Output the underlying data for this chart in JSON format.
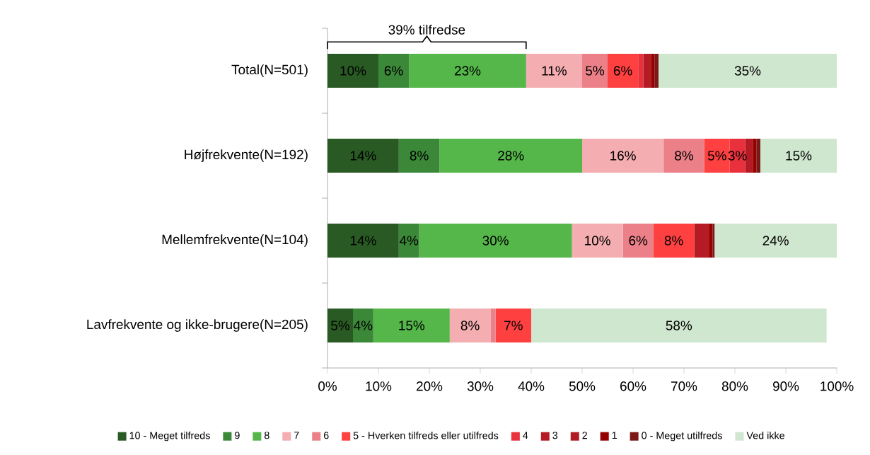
{
  "chart_data": {
    "type": "bar",
    "orientation": "horizontal",
    "stacked": true,
    "categories": [
      "Total(N=501)",
      "Højfrekvente(N=192)",
      "Mellemfrekvente(N=104)",
      "Lavfrekvente og ikke-brugere(N=205)"
    ],
    "series": [
      {
        "name": "10 - Meget tilfreds",
        "color": "#2a5a24",
        "values": [
          10,
          14,
          14,
          5
        ],
        "value_labels": [
          "10%",
          "14%",
          "14%",
          "5%"
        ]
      },
      {
        "name": "9",
        "color": "#3a8838",
        "values": [
          6,
          8,
          4,
          4
        ],
        "value_labels": [
          "6%",
          "8%",
          "4%",
          "4%"
        ]
      },
      {
        "name": "8",
        "color": "#55b64a",
        "values": [
          23,
          28,
          30,
          15
        ],
        "value_labels": [
          "23%",
          "28%",
          "30%",
          "15%"
        ]
      },
      {
        "name": "7",
        "color": "#f4adb0",
        "values": [
          11,
          16,
          10,
          8
        ],
        "value_labels": [
          "11%",
          "16%",
          "10%",
          "8%"
        ]
      },
      {
        "name": "6",
        "color": "#ec8088",
        "values": [
          5,
          8,
          6,
          1
        ],
        "value_labels": [
          "5%",
          "8%",
          "6%",
          null
        ]
      },
      {
        "name": "5 - Hverken tilfreds eller utilfreds",
        "color": "#ff4040",
        "values": [
          6,
          5,
          8,
          7
        ],
        "value_labels": [
          "6%",
          "5%",
          "8%",
          "7%"
        ]
      },
      {
        "name": "4",
        "color": "#e8313c",
        "values": [
          1,
          3,
          0,
          0
        ],
        "value_labels": [
          null,
          "3%",
          null,
          null
        ]
      },
      {
        "name": "3",
        "color": "#b51b25",
        "values": [
          1.5,
          1.5,
          3,
          0
        ],
        "value_labels": [
          null,
          null,
          null,
          null
        ]
      },
      {
        "name": "2",
        "color": "#b01c24",
        "values": [
          0,
          0,
          0,
          0
        ],
        "value_labels": [
          null,
          null,
          null,
          null
        ]
      },
      {
        "name": "1",
        "color": "#950000",
        "values": [
          0.7,
          0.7,
          0.6,
          0
        ],
        "value_labels": [
          null,
          null,
          null,
          null
        ]
      },
      {
        "name": "0 - Meget utilfreds",
        "color": "#7b1818",
        "values": [
          0.8,
          0.8,
          0.4,
          0
        ],
        "value_labels": [
          null,
          null,
          null,
          null
        ]
      },
      {
        "name": "Ved ikke",
        "color": "#cfe6cf",
        "values": [
          35,
          15,
          24,
          58
        ],
        "value_labels": [
          "35%",
          "15%",
          "24%",
          "58%"
        ]
      }
    ],
    "xlim": [
      0,
      100
    ],
    "xticks": [
      {
        "value": 0,
        "label": "0%"
      },
      {
        "value": 10,
        "label": "10%"
      },
      {
        "value": 20,
        "label": "20%"
      },
      {
        "value": 30,
        "label": "30%"
      },
      {
        "value": 40,
        "label": "40%"
      },
      {
        "value": 50,
        "label": "50%"
      },
      {
        "value": 60,
        "label": "60%"
      },
      {
        "value": 70,
        "label": "70%"
      },
      {
        "value": 80,
        "label": "80%"
      },
      {
        "value": 90,
        "label": "90%"
      },
      {
        "value": 100,
        "label": "100%"
      }
    ],
    "annotations": [
      "39% tilfredse"
    ],
    "legend": "bottom",
    "grid": false
  }
}
